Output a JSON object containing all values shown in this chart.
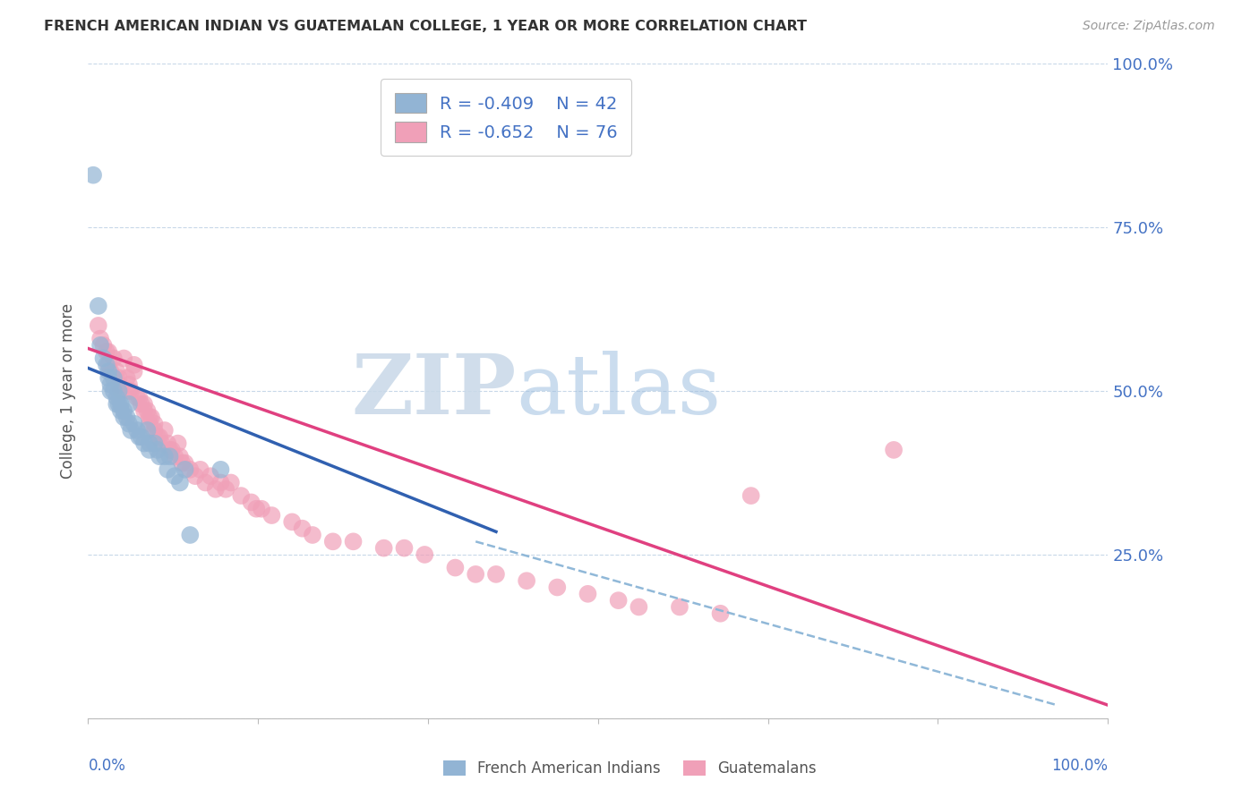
{
  "title": "FRENCH AMERICAN INDIAN VS GUATEMALAN COLLEGE, 1 YEAR OR MORE CORRELATION CHART",
  "source": "Source: ZipAtlas.com",
  "ylabel": "College, 1 year or more",
  "xlim": [
    0,
    1
  ],
  "ylim": [
    0,
    1
  ],
  "ytick_labels": [
    "",
    "25.0%",
    "50.0%",
    "75.0%",
    "100.0%"
  ],
  "ytick_values": [
    0,
    0.25,
    0.5,
    0.75,
    1.0
  ],
  "watermark_zip": "ZIP",
  "watermark_atlas": "atlas",
  "blue_R": "-0.409",
  "blue_N": "42",
  "pink_R": "-0.652",
  "pink_N": "76",
  "blue_color": "#92b4d4",
  "pink_color": "#f0a0b8",
  "blue_line_color": "#3060b0",
  "pink_line_color": "#e04080",
  "dashed_line_color": "#90b8d8",
  "blue_scatter": [
    [
      0.005,
      0.83
    ],
    [
      0.01,
      0.63
    ],
    [
      0.012,
      0.57
    ],
    [
      0.015,
      0.55
    ],
    [
      0.018,
      0.54
    ],
    [
      0.02,
      0.53
    ],
    [
      0.02,
      0.52
    ],
    [
      0.022,
      0.51
    ],
    [
      0.022,
      0.5
    ],
    [
      0.025,
      0.52
    ],
    [
      0.025,
      0.5
    ],
    [
      0.028,
      0.49
    ],
    [
      0.028,
      0.48
    ],
    [
      0.03,
      0.5
    ],
    [
      0.03,
      0.48
    ],
    [
      0.032,
      0.48
    ],
    [
      0.032,
      0.47
    ],
    [
      0.035,
      0.47
    ],
    [
      0.035,
      0.46
    ],
    [
      0.038,
      0.46
    ],
    [
      0.04,
      0.48
    ],
    [
      0.04,
      0.45
    ],
    [
      0.042,
      0.44
    ],
    [
      0.045,
      0.45
    ],
    [
      0.048,
      0.44
    ],
    [
      0.05,
      0.43
    ],
    [
      0.052,
      0.43
    ],
    [
      0.055,
      0.42
    ],
    [
      0.058,
      0.44
    ],
    [
      0.06,
      0.42
    ],
    [
      0.06,
      0.41
    ],
    [
      0.065,
      0.42
    ],
    [
      0.068,
      0.41
    ],
    [
      0.07,
      0.4
    ],
    [
      0.075,
      0.4
    ],
    [
      0.078,
      0.38
    ],
    [
      0.08,
      0.4
    ],
    [
      0.085,
      0.37
    ],
    [
      0.09,
      0.36
    ],
    [
      0.095,
      0.38
    ],
    [
      0.1,
      0.28
    ],
    [
      0.13,
      0.38
    ]
  ],
  "pink_scatter": [
    [
      0.01,
      0.6
    ],
    [
      0.012,
      0.58
    ],
    [
      0.015,
      0.57
    ],
    [
      0.018,
      0.56
    ],
    [
      0.02,
      0.56
    ],
    [
      0.02,
      0.54
    ],
    [
      0.022,
      0.53
    ],
    [
      0.025,
      0.55
    ],
    [
      0.028,
      0.53
    ],
    [
      0.03,
      0.52
    ],
    [
      0.03,
      0.51
    ],
    [
      0.032,
      0.5
    ],
    [
      0.035,
      0.55
    ],
    [
      0.038,
      0.52
    ],
    [
      0.04,
      0.51
    ],
    [
      0.04,
      0.5
    ],
    [
      0.042,
      0.5
    ],
    [
      0.045,
      0.54
    ],
    [
      0.045,
      0.53
    ],
    [
      0.048,
      0.49
    ],
    [
      0.05,
      0.49
    ],
    [
      0.052,
      0.48
    ],
    [
      0.055,
      0.48
    ],
    [
      0.055,
      0.47
    ],
    [
      0.058,
      0.47
    ],
    [
      0.06,
      0.46
    ],
    [
      0.06,
      0.45
    ],
    [
      0.062,
      0.46
    ],
    [
      0.065,
      0.45
    ],
    [
      0.065,
      0.44
    ],
    [
      0.068,
      0.43
    ],
    [
      0.07,
      0.43
    ],
    [
      0.072,
      0.42
    ],
    [
      0.075,
      0.44
    ],
    [
      0.078,
      0.42
    ],
    [
      0.08,
      0.41
    ],
    [
      0.082,
      0.41
    ],
    [
      0.085,
      0.4
    ],
    [
      0.088,
      0.42
    ],
    [
      0.09,
      0.4
    ],
    [
      0.092,
      0.39
    ],
    [
      0.095,
      0.39
    ],
    [
      0.1,
      0.38
    ],
    [
      0.105,
      0.37
    ],
    [
      0.11,
      0.38
    ],
    [
      0.115,
      0.36
    ],
    [
      0.12,
      0.37
    ],
    [
      0.125,
      0.35
    ],
    [
      0.13,
      0.36
    ],
    [
      0.135,
      0.35
    ],
    [
      0.14,
      0.36
    ],
    [
      0.15,
      0.34
    ],
    [
      0.16,
      0.33
    ],
    [
      0.165,
      0.32
    ],
    [
      0.17,
      0.32
    ],
    [
      0.18,
      0.31
    ],
    [
      0.2,
      0.3
    ],
    [
      0.21,
      0.29
    ],
    [
      0.22,
      0.28
    ],
    [
      0.24,
      0.27
    ],
    [
      0.26,
      0.27
    ],
    [
      0.29,
      0.26
    ],
    [
      0.31,
      0.26
    ],
    [
      0.33,
      0.25
    ],
    [
      0.36,
      0.23
    ],
    [
      0.38,
      0.22
    ],
    [
      0.4,
      0.22
    ],
    [
      0.43,
      0.21
    ],
    [
      0.46,
      0.2
    ],
    [
      0.49,
      0.19
    ],
    [
      0.52,
      0.18
    ],
    [
      0.54,
      0.17
    ],
    [
      0.58,
      0.17
    ],
    [
      0.62,
      0.16
    ],
    [
      0.65,
      0.34
    ],
    [
      0.79,
      0.41
    ]
  ],
  "blue_trendline": [
    [
      0.0,
      0.535
    ],
    [
      0.4,
      0.285
    ]
  ],
  "pink_trendline": [
    [
      0.0,
      0.565
    ],
    [
      1.0,
      0.02
    ]
  ],
  "dashed_trendline": [
    [
      0.38,
      0.27
    ],
    [
      0.95,
      0.02
    ]
  ]
}
